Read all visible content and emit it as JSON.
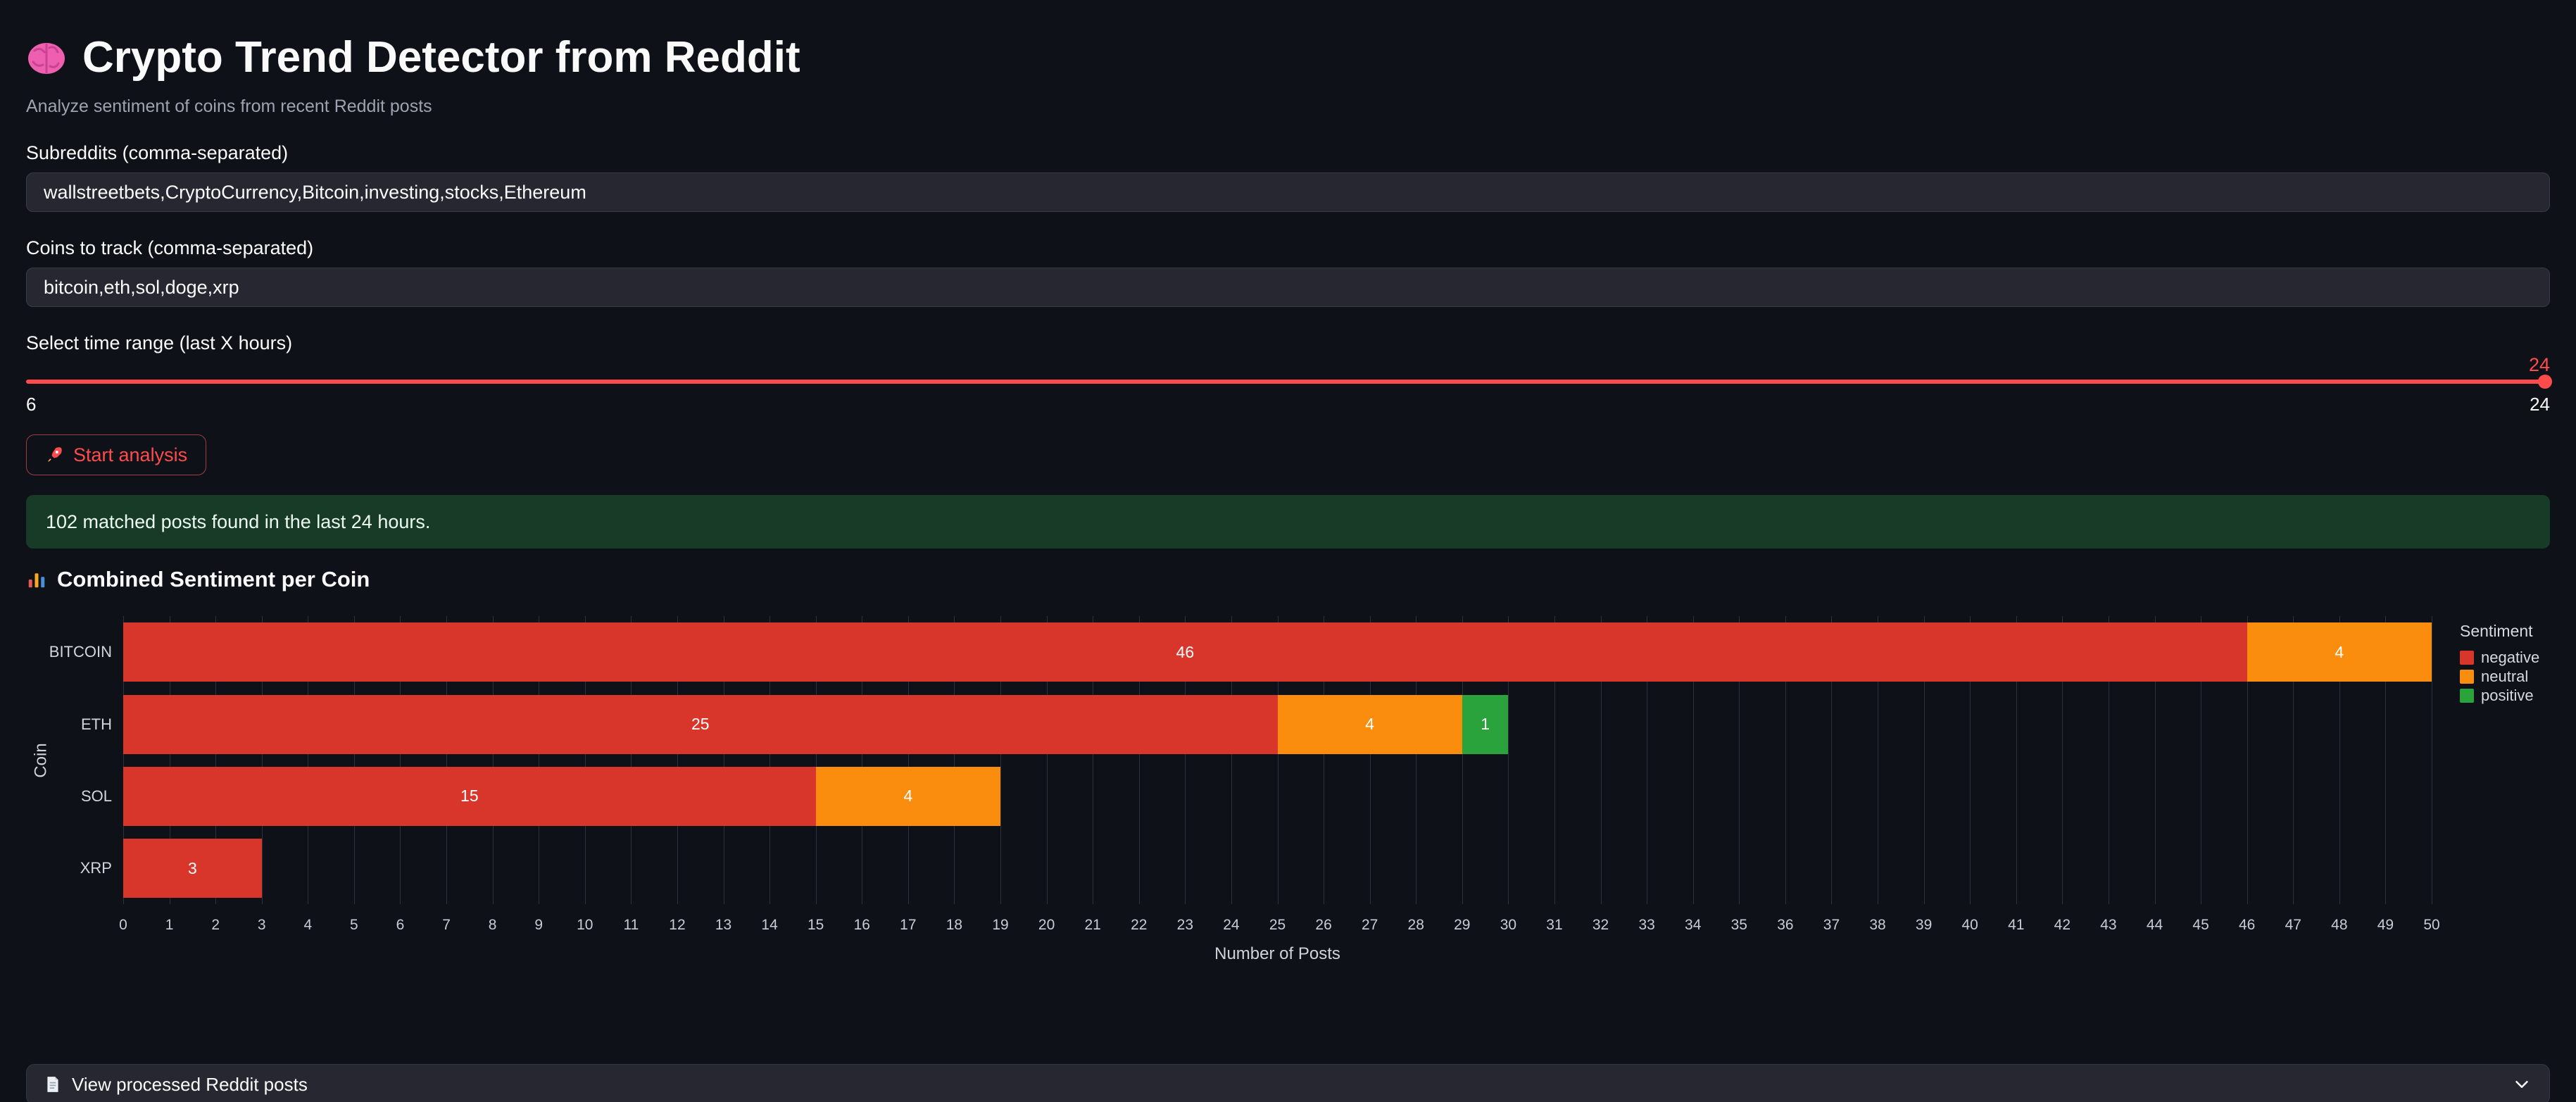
{
  "app": {
    "title": "Crypto Trend Detector from Reddit",
    "caption": "Analyze sentiment of coins from recent Reddit posts"
  },
  "form": {
    "subreddits_label": "Subreddits (comma-separated)",
    "subreddits_value": "wallstreetbets,CryptoCurrency,Bitcoin,investing,stocks,Ethereum",
    "coins_label": "Coins to track (comma-separated)",
    "coins_value": "bitcoin,eth,sol,doge,xrp",
    "slider_label": "Select time range (last X hours)",
    "slider_value": "24",
    "slider_min": "6",
    "slider_max": "24",
    "start_button": "Start analysis"
  },
  "results": {
    "success_message": "102 matched posts found in the last 24 hours.",
    "section_title": "Combined Sentiment per Coin"
  },
  "expander": {
    "label": "View processed Reddit posts"
  },
  "colors": {
    "accent": "#ff4b4b",
    "background": "#0e1117",
    "input_background": "#262730",
    "success_background": "#173b27",
    "negative": "#d9362b",
    "neutral": "#fb8d0e",
    "positive": "#2aa33c"
  },
  "chart_data": {
    "type": "bar",
    "orientation": "horizontal",
    "stacked": true,
    "categories": [
      "BITCOIN",
      "ETH",
      "SOL",
      "XRP"
    ],
    "series": [
      {
        "name": "negative",
        "color": "#d9362b",
        "values": [
          46,
          25,
          15,
          3
        ]
      },
      {
        "name": "neutral",
        "color": "#fb8d0e",
        "values": [
          4,
          4,
          4,
          0
        ]
      },
      {
        "name": "positive",
        "color": "#2aa33c",
        "values": [
          0,
          1,
          0,
          0
        ]
      }
    ],
    "xlabel": "Number of Posts",
    "ylabel": "Coin",
    "xlim": [
      0,
      50
    ],
    "xtick_step": 1,
    "legend_title": "Sentiment",
    "legend_position": "top-right",
    "grid": true
  }
}
